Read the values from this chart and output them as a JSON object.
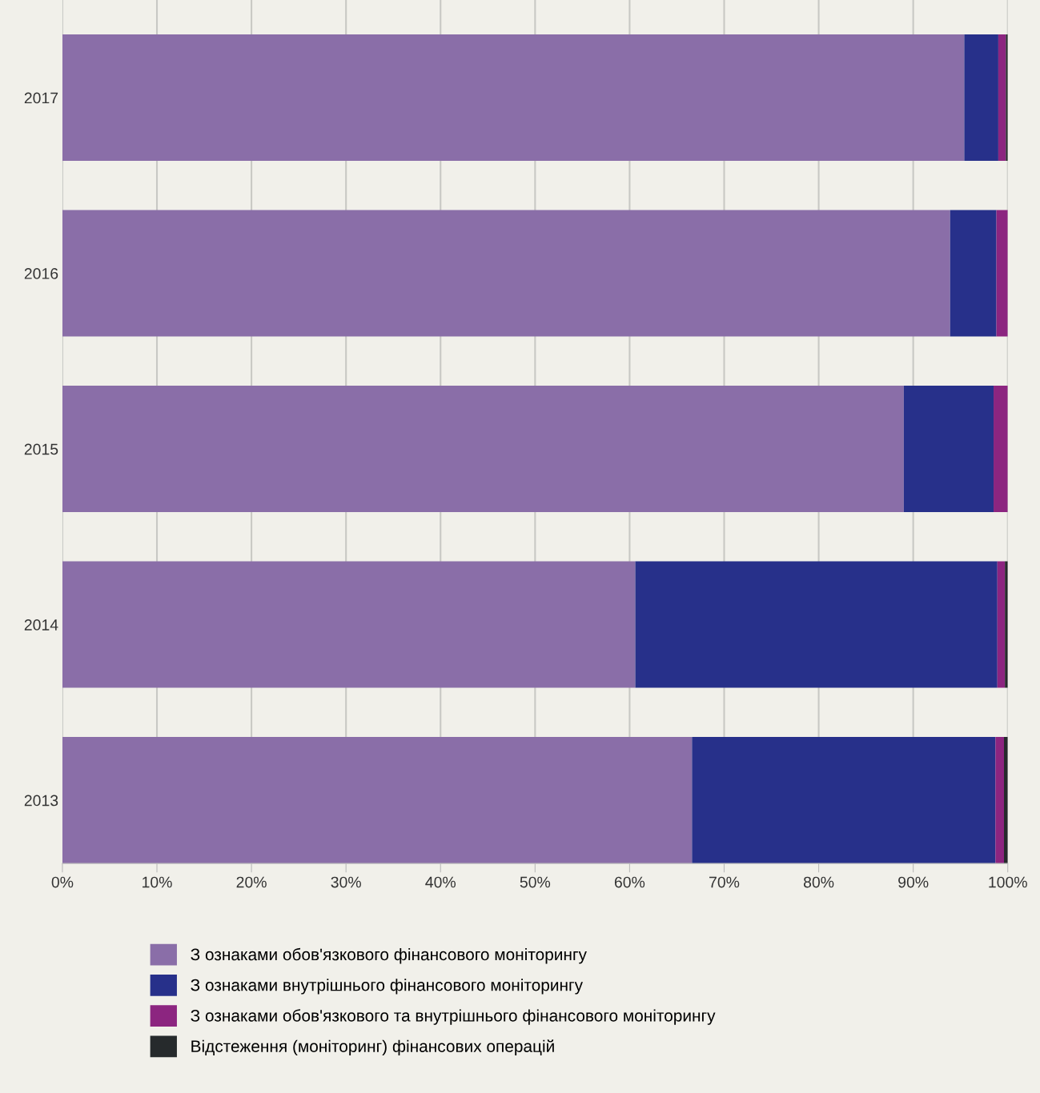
{
  "chart_data": {
    "type": "bar",
    "orientation": "horizontal",
    "stacked": true,
    "categories": [
      "2017",
      "2016",
      "2015",
      "2014",
      "2013"
    ],
    "series": [
      {
        "name": "З ознаками обов'язкового фінансового моніторингу",
        "color": "#8a6ea8",
        "values": [
          95.4,
          93.9,
          89.0,
          60.6,
          66.6
        ]
      },
      {
        "name": "З ознаками внутрішнього фінансового моніторингу",
        "color": "#27308a",
        "values": [
          3.6,
          4.9,
          9.5,
          38.3,
          32.1
        ]
      },
      {
        "name": "З ознаками обов'язкового та внутрішнього фінансового моніторингу",
        "color": "#8c2580",
        "values": [
          0.8,
          1.2,
          1.5,
          0.8,
          0.9
        ]
      },
      {
        "name": "Відстеження (моніторинг) фінансових операцій",
        "color": "#262a2c",
        "values": [
          0.2,
          0.0,
          0.0,
          0.3,
          0.4
        ]
      }
    ],
    "xlim": [
      0,
      100
    ],
    "xticks": [
      {
        "value": 0,
        "label": "0%"
      },
      {
        "value": 10,
        "label": "10%"
      },
      {
        "value": 20,
        "label": "20%"
      },
      {
        "value": 30,
        "label": "30%"
      },
      {
        "value": 40,
        "label": "40%"
      },
      {
        "value": 50,
        "label": "50%"
      },
      {
        "value": 60,
        "label": "60%"
      },
      {
        "value": 70,
        "label": "70%"
      },
      {
        "value": 80,
        "label": "80%"
      },
      {
        "value": 90,
        "label": "90%"
      },
      {
        "value": 100,
        "label": "100%"
      }
    ],
    "grid": "x",
    "legend": "bottom"
  }
}
